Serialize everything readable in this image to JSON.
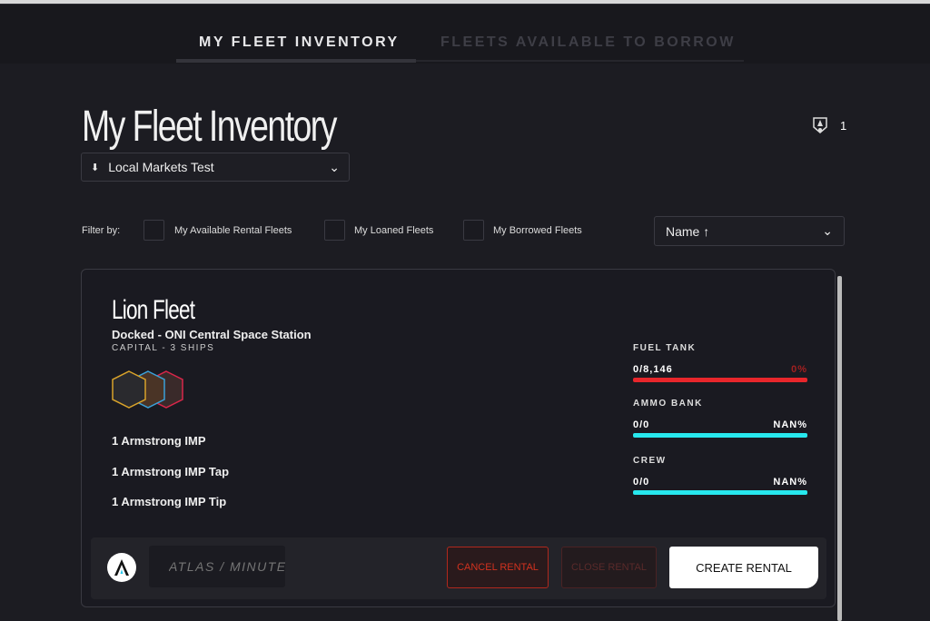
{
  "tabs": [
    {
      "label": "MY FLEET INVENTORY",
      "active": true
    },
    {
      "label": "FLEETS AVAILABLE TO BORROW",
      "active": false
    }
  ],
  "page_title": "My Fleet Inventory",
  "badge_count": "1",
  "market_select": {
    "value": "Local Markets Test"
  },
  "filters": {
    "label": "Filter by:",
    "options": [
      "My Available Rental Fleets",
      "My Loaned Fleets",
      "My Borrowed Fleets"
    ]
  },
  "sort": {
    "value": "Name ↑"
  },
  "fleet": {
    "name": "Lion Fleet",
    "location": "Docked - ONI Central Space Station",
    "class": "CAPITAL - 3 SHIPS",
    "ships": [
      "1 Armstrong IMP",
      "1 Armstrong IMP Tap",
      "1 Armstrong IMP Tip"
    ],
    "stats": [
      {
        "label": "FUEL TANK",
        "value": "0/8,146",
        "percent": "0%",
        "color": "#e8262b"
      },
      {
        "label": "AMMO BANK",
        "value": "0/0",
        "percent": "NAN%",
        "color": "#27e8ee"
      },
      {
        "label": "CREW",
        "value": "0/0",
        "percent": "NAN%",
        "color": "#27e8ee"
      }
    ],
    "price_placeholder": "ATLAS / MINUTE",
    "buttons": {
      "cancel": "CANCEL RENTAL",
      "close": "CLOSE RENTAL",
      "create": "CREATE RENTAL"
    }
  }
}
